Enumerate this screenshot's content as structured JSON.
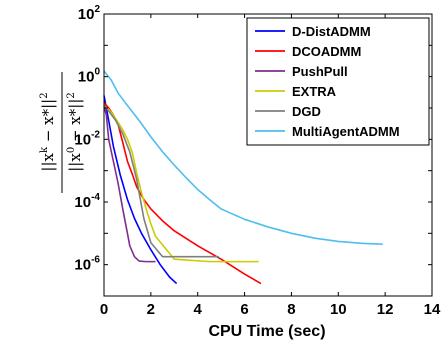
{
  "chart_data": {
    "type": "line",
    "xlabel": "CPU Time (sec)",
    "ylabel_numerator": "||x^k − x*||^2",
    "ylabel_denominator": "||x^0 − x*||^2",
    "xlim": [
      0,
      14
    ],
    "ylim": [
      1e-07,
      100
    ],
    "yscale": "log",
    "xticks": [
      "0",
      "2",
      "4",
      "6",
      "8",
      "10",
      "12",
      "14"
    ],
    "yticks": [
      {
        "base": "10",
        "exp": "2",
        "value": 100
      },
      {
        "base": "10",
        "exp": "0",
        "value": 1
      },
      {
        "base": "10",
        "exp": "-2",
        "value": 0.01
      },
      {
        "base": "10",
        "exp": "-4",
        "value": 0.0001
      },
      {
        "base": "10",
        "exp": "-6",
        "value": 1e-06
      }
    ],
    "legend_position": "top-right",
    "series": [
      {
        "name": "D-DistADMM",
        "color": "#0000ff",
        "x": [
          0.0,
          0.2,
          0.4,
          0.7,
          1.0,
          1.3,
          1.6,
          2.0,
          2.4,
          2.8,
          3.1
        ],
        "y": [
          0.25,
          0.04,
          0.006,
          0.0007,
          0.00012,
          3e-05,
          1e-05,
          3e-06,
          1e-06,
          4e-07,
          2.5e-07
        ]
      },
      {
        "name": "DCOADMM",
        "color": "#ff0000",
        "x": [
          0.0,
          0.2,
          0.4,
          0.6,
          0.8,
          1.0,
          1.2,
          1.4,
          1.7,
          2.0,
          2.5,
          3.0,
          4.0,
          5.0,
          6.0,
          6.7
        ],
        "y": [
          0.15,
          0.1,
          0.06,
          0.03,
          0.008,
          0.002,
          0.0008,
          0.0003,
          0.00012,
          6e-05,
          2.5e-05,
          1.2e-05,
          4e-06,
          1.5e-06,
          5e-07,
          2.5e-07
        ]
      },
      {
        "name": "PushPull",
        "color": "#7e2f8e",
        "x": [
          0.0,
          0.1,
          0.2,
          0.4,
          0.6,
          0.8,
          1.0,
          1.1,
          1.3,
          1.5,
          1.8,
          2.2
        ],
        "y": [
          0.12,
          0.06,
          0.01,
          0.002,
          0.0004,
          6e-05,
          1e-05,
          4e-06,
          1.8e-06,
          1.3e-06,
          1.25e-06,
          1.25e-06
        ]
      },
      {
        "name": "EXTRA",
        "color": "#cccc00",
        "x": [
          0.0,
          0.2,
          0.4,
          0.6,
          0.8,
          1.0,
          1.2,
          1.4,
          1.6,
          1.8,
          2.0,
          2.2,
          3.0,
          4.5,
          6.6
        ],
        "y": [
          0.12,
          0.09,
          0.06,
          0.035,
          0.02,
          0.01,
          0.004,
          0.0008,
          0.0002,
          6e-05,
          2e-05,
          8e-06,
          1.5e-06,
          1.25e-06,
          1.25e-06
        ]
      },
      {
        "name": "DGD",
        "color": "#7f7f7f",
        "x": [
          0.0,
          0.2,
          0.5,
          0.8,
          1.1,
          1.4,
          1.7,
          2.0,
          2.5,
          3.5,
          4.9
        ],
        "y": [
          0.12,
          0.08,
          0.04,
          0.015,
          0.004,
          0.0005,
          3e-05,
          5e-06,
          1.8e-06,
          1.8e-06,
          1.8e-06
        ]
      },
      {
        "name": "MultiAgentADMM",
        "color": "#4dbeee",
        "x": [
          0.0,
          0.3,
          0.6,
          1.0,
          1.5,
          2.0,
          2.5,
          3.0,
          3.5,
          4.0,
          4.5,
          5.0,
          6.0,
          7.0,
          8.0,
          9.0,
          10.0,
          11.0,
          11.9
        ],
        "y": [
          1.5,
          0.8,
          0.3,
          0.12,
          0.04,
          0.012,
          0.004,
          0.0015,
          0.0006,
          0.00025,
          0.00012,
          6e-05,
          2.8e-05,
          1.6e-05,
          1e-05,
          7e-06,
          5.5e-06,
          4.8e-06,
          4.5e-06
        ]
      }
    ]
  }
}
